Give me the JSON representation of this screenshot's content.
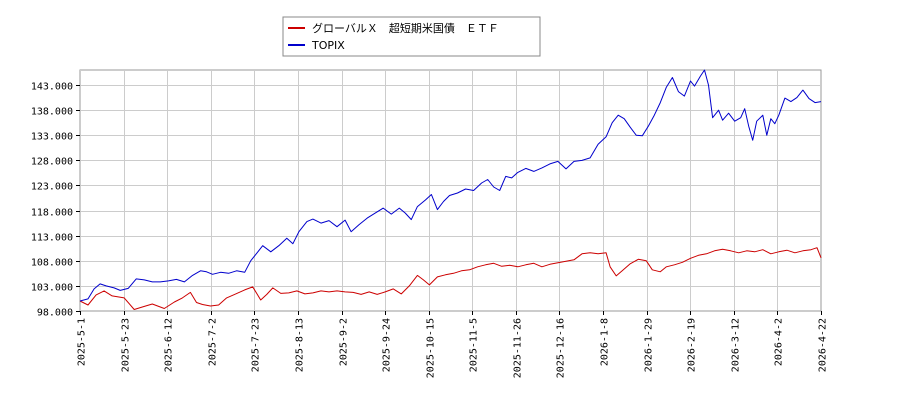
{
  "chart_data": {
    "type": "line",
    "title": "",
    "xlabel": "",
    "ylabel": "",
    "ylim": [
      98.0,
      146.0
    ],
    "yticks": [
      "98.000",
      "103.000",
      "108.000",
      "113.000",
      "118.000",
      "123.000",
      "128.000",
      "133.000",
      "138.000",
      "143.000"
    ],
    "yticks_values": [
      98,
      103,
      108,
      113,
      118,
      123,
      128,
      133,
      138,
      143
    ],
    "xticks": [
      "2025-5-1",
      "2025-5-23",
      "2025-6-12",
      "2025-7-2",
      "2025-7-23",
      "2025-8-13",
      "2025-9-2",
      "2025-9-24",
      "2025-10-15",
      "2025-11-5",
      "2025-11-26",
      "2025-12-16",
      "2026-1-8",
      "2026-1-29",
      "2026-2-19",
      "2026-3-12",
      "2026-4-2",
      "2026-4-22"
    ],
    "grid": true,
    "legend_position": "top-center",
    "series": [
      {
        "name": "グローバルＸ　超短期米国債　ＥＴＦ",
        "color": "#cc0000",
        "points": [
          [
            0,
            100.0
          ],
          [
            4,
            99.2
          ],
          [
            8,
            101.2
          ],
          [
            12,
            102.0
          ],
          [
            16,
            101.0
          ],
          [
            22,
            100.6
          ],
          [
            27,
            98.3
          ],
          [
            31,
            98.8
          ],
          [
            36,
            99.4
          ],
          [
            42,
            98.5
          ],
          [
            47,
            99.8
          ],
          [
            51,
            100.6
          ],
          [
            55,
            101.7
          ],
          [
            58,
            99.7
          ],
          [
            61,
            99.3
          ],
          [
            65,
            99.0
          ],
          [
            69,
            99.2
          ],
          [
            73,
            100.6
          ],
          [
            77,
            101.3
          ],
          [
            82,
            102.2
          ],
          [
            86,
            102.8
          ],
          [
            88,
            101.5
          ],
          [
            90,
            100.2
          ],
          [
            93,
            101.3
          ],
          [
            96,
            102.6
          ],
          [
            100,
            101.5
          ],
          [
            104,
            101.6
          ],
          [
            108,
            102.0
          ],
          [
            112,
            101.4
          ],
          [
            116,
            101.6
          ],
          [
            120,
            102.0
          ],
          [
            124,
            101.8
          ],
          [
            128,
            102.0
          ],
          [
            132,
            101.8
          ],
          [
            136,
            101.7
          ],
          [
            140,
            101.3
          ],
          [
            144,
            101.8
          ],
          [
            148,
            101.3
          ],
          [
            152,
            101.8
          ],
          [
            156,
            102.4
          ],
          [
            160,
            101.4
          ],
          [
            164,
            103.0
          ],
          [
            168,
            105.1
          ],
          [
            171,
            104.2
          ],
          [
            174,
            103.2
          ],
          [
            178,
            104.8
          ],
          [
            182,
            105.2
          ],
          [
            186,
            105.5
          ],
          [
            190,
            106.0
          ],
          [
            194,
            106.2
          ],
          [
            198,
            106.8
          ],
          [
            202,
            107.2
          ],
          [
            206,
            107.5
          ],
          [
            210,
            106.9
          ],
          [
            214,
            107.1
          ],
          [
            218,
            106.8
          ],
          [
            222,
            107.2
          ],
          [
            226,
            107.5
          ],
          [
            230,
            106.8
          ],
          [
            234,
            107.3
          ],
          [
            238,
            107.6
          ],
          [
            242,
            107.9
          ],
          [
            246,
            108.2
          ],
          [
            250,
            109.4
          ],
          [
            254,
            109.6
          ],
          [
            258,
            109.4
          ],
          [
            262,
            109.6
          ],
          [
            264,
            106.8
          ],
          [
            267,
            105.0
          ],
          [
            270,
            106.0
          ],
          [
            274,
            107.4
          ],
          [
            278,
            108.3
          ],
          [
            282,
            108.0
          ],
          [
            285,
            106.2
          ],
          [
            289,
            105.8
          ],
          [
            292,
            106.8
          ],
          [
            296,
            107.2
          ],
          [
            300,
            107.7
          ],
          [
            304,
            108.5
          ],
          [
            308,
            109.1
          ],
          [
            312,
            109.4
          ],
          [
            316,
            110.0
          ],
          [
            320,
            110.3
          ],
          [
            324,
            110.0
          ],
          [
            328,
            109.6
          ],
          [
            332,
            110.0
          ],
          [
            336,
            109.8
          ],
          [
            340,
            110.2
          ],
          [
            344,
            109.4
          ],
          [
            348,
            109.8
          ],
          [
            352,
            110.1
          ],
          [
            356,
            109.6
          ],
          [
            360,
            110.0
          ],
          [
            364,
            110.2
          ],
          [
            367,
            110.6
          ],
          [
            369,
            108.6
          ]
        ]
      },
      {
        "name": "TOPIX",
        "color": "#0000cc",
        "points": [
          [
            0,
            100.0
          ],
          [
            4,
            100.4
          ],
          [
            7,
            102.4
          ],
          [
            10,
            103.4
          ],
          [
            13,
            103.0
          ],
          [
            17,
            102.6
          ],
          [
            20,
            102.1
          ],
          [
            24,
            102.5
          ],
          [
            28,
            104.4
          ],
          [
            32,
            104.2
          ],
          [
            36,
            103.8
          ],
          [
            40,
            103.8
          ],
          [
            44,
            104.0
          ],
          [
            48,
            104.3
          ],
          [
            52,
            103.8
          ],
          [
            56,
            105.1
          ],
          [
            60,
            106.0
          ],
          [
            63,
            105.8
          ],
          [
            66,
            105.3
          ],
          [
            70,
            105.7
          ],
          [
            74,
            105.5
          ],
          [
            78,
            106.0
          ],
          [
            82,
            105.7
          ],
          [
            85,
            108.0
          ],
          [
            88,
            109.5
          ],
          [
            91,
            111.0
          ],
          [
            95,
            109.8
          ],
          [
            99,
            111.0
          ],
          [
            103,
            112.5
          ],
          [
            106,
            111.4
          ],
          [
            109,
            113.8
          ],
          [
            113,
            115.8
          ],
          [
            116,
            116.3
          ],
          [
            120,
            115.5
          ],
          [
            124,
            116.0
          ],
          [
            128,
            114.8
          ],
          [
            132,
            116.1
          ],
          [
            135,
            113.8
          ],
          [
            139,
            115.2
          ],
          [
            143,
            116.5
          ],
          [
            147,
            117.5
          ],
          [
            151,
            118.5
          ],
          [
            155,
            117.3
          ],
          [
            159,
            118.5
          ],
          [
            162,
            117.5
          ],
          [
            165,
            116.2
          ],
          [
            168,
            118.8
          ],
          [
            172,
            120.1
          ],
          [
            175,
            121.2
          ],
          [
            178,
            118.2
          ],
          [
            181,
            119.8
          ],
          [
            184,
            121.0
          ],
          [
            188,
            121.5
          ],
          [
            192,
            122.3
          ],
          [
            196,
            122.0
          ],
          [
            200,
            123.5
          ],
          [
            203,
            124.2
          ],
          [
            206,
            122.7
          ],
          [
            209,
            122.0
          ],
          [
            212,
            124.8
          ],
          [
            215,
            124.5
          ],
          [
            218,
            125.6
          ],
          [
            222,
            126.4
          ],
          [
            226,
            125.8
          ],
          [
            230,
            126.5
          ],
          [
            234,
            127.3
          ],
          [
            238,
            127.8
          ],
          [
            242,
            126.3
          ],
          [
            246,
            127.8
          ],
          [
            250,
            128.0
          ],
          [
            254,
            128.5
          ],
          [
            258,
            131.2
          ],
          [
            262,
            132.7
          ],
          [
            265,
            135.5
          ],
          [
            268,
            137.0
          ],
          [
            271,
            136.3
          ],
          [
            274,
            134.6
          ],
          [
            277,
            133.0
          ],
          [
            280,
            132.9
          ],
          [
            283,
            134.8
          ],
          [
            286,
            137.0
          ],
          [
            289,
            139.5
          ],
          [
            292,
            142.6
          ],
          [
            295,
            144.5
          ],
          [
            298,
            141.7
          ],
          [
            301,
            140.8
          ],
          [
            304,
            143.8
          ],
          [
            306,
            142.8
          ],
          [
            309,
            144.8
          ],
          [
            311,
            146.0
          ],
          [
            313,
            143.0
          ],
          [
            315,
            136.5
          ],
          [
            318,
            138.0
          ],
          [
            320,
            136.0
          ],
          [
            323,
            137.4
          ],
          [
            326,
            135.8
          ],
          [
            329,
            136.5
          ],
          [
            331,
            138.3
          ],
          [
            333,
            134.8
          ],
          [
            335,
            132.0
          ],
          [
            337,
            135.8
          ],
          [
            340,
            137.0
          ],
          [
            342,
            133.0
          ],
          [
            344,
            136.3
          ],
          [
            346,
            135.3
          ],
          [
            348,
            137.0
          ],
          [
            351,
            140.4
          ],
          [
            354,
            139.7
          ],
          [
            357,
            140.5
          ],
          [
            360,
            142.0
          ],
          [
            363,
            140.3
          ],
          [
            366,
            139.5
          ],
          [
            369,
            139.7
          ]
        ]
      }
    ]
  }
}
